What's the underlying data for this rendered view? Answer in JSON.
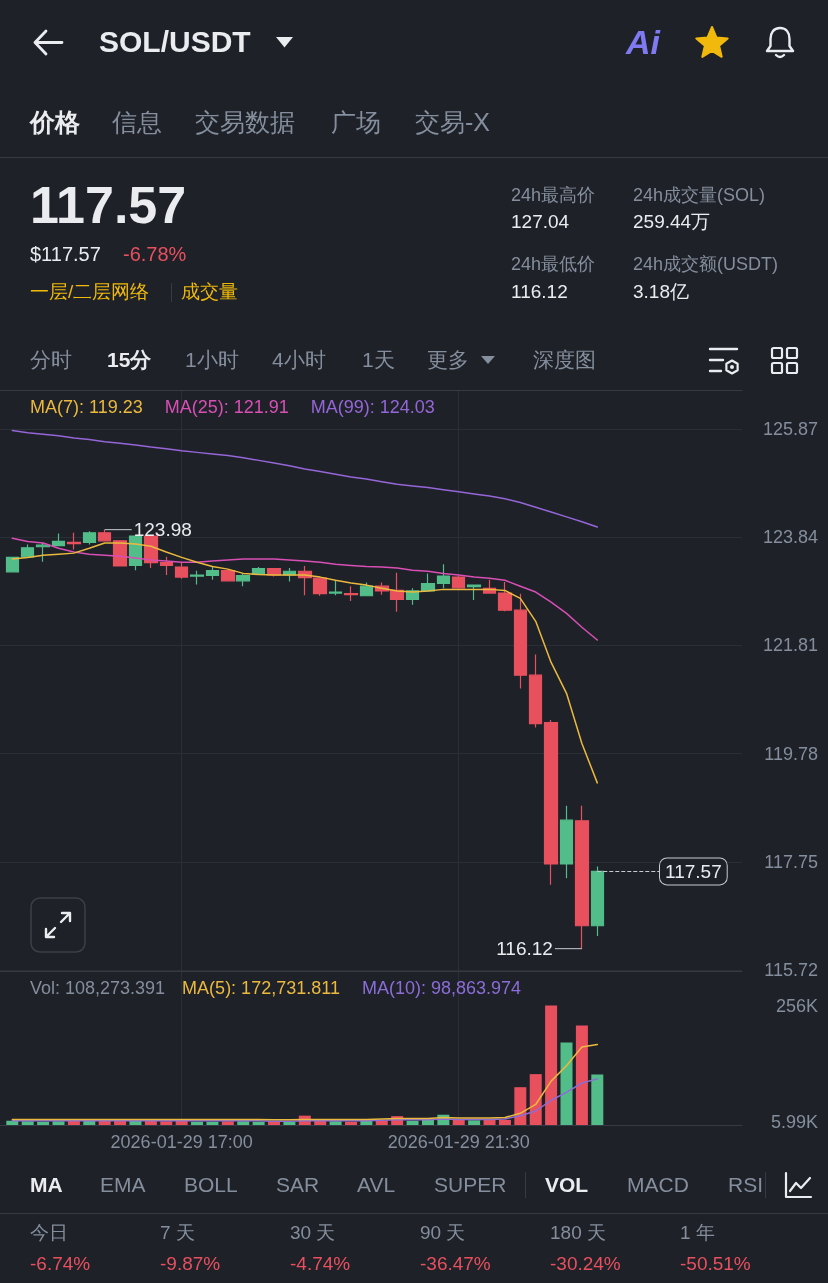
{
  "chart_data": [
    {
      "type": "other",
      "title": "SOL/USDT",
      "annotations": [
        "Ai",
        "价格",
        "信息",
        "交易数据",
        "广场",
        "交易-X",
        "117.57",
        "$117.57",
        "-6.78%",
        "一层/二层网络",
        "成交量",
        "24h最高价",
        "127.04",
        "24h成交量(SOL)",
        "259.44万",
        "24h最低价",
        "116.12",
        "24h成交额(USDT)",
        "3.18亿",
        "分时",
        "15分",
        "1小时",
        "4小时",
        "1天",
        "更多",
        "深度图"
      ]
    },
    {
      "type": "candlestick",
      "x": [
        "2026-01-29T14:15",
        "2026-01-29T14:30",
        "2026-01-29T14:45",
        "2026-01-29T15:00",
        "2026-01-29T15:15",
        "2026-01-29T15:30",
        "2026-01-29T15:45",
        "2026-01-29T16:00",
        "2026-01-29T16:15",
        "2026-01-29T16:30",
        "2026-01-29T16:45",
        "2026-01-29T17:00",
        "2026-01-29T17:15",
        "2026-01-29T17:30",
        "2026-01-29T17:45",
        "2026-01-29T18:00",
        "2026-01-29T18:15",
        "2026-01-29T18:30",
        "2026-01-29T18:45",
        "2026-01-29T19:00",
        "2026-01-29T19:15",
        "2026-01-29T19:30",
        "2026-01-29T19:45",
        "2026-01-29T20:00",
        "2026-01-29T20:15",
        "2026-01-29T20:30",
        "2026-01-29T20:45",
        "2026-01-29T21:00",
        "2026-01-29T21:15",
        "2026-01-29T21:30",
        "2026-01-29T21:45",
        "2026-01-29T22:00",
        "2026-01-29T22:15",
        "2026-01-29T22:30",
        "2026-01-29T22:45",
        "2026-01-29T23:00",
        "2026-01-29T23:15",
        "2026-01-29T23:30",
        "2026-01-29T23:45"
      ],
      "ohlc": [
        [
          123.19,
          123.47,
          123.18,
          123.46
        ],
        [
          123.47,
          123.7,
          123.47,
          123.64
        ],
        [
          123.66,
          123.73,
          123.38,
          123.69
        ],
        [
          123.68,
          123.91,
          123.67,
          123.76
        ],
        [
          123.74,
          123.92,
          123.61,
          123.72
        ],
        [
          123.74,
          123.95,
          123.7,
          123.92
        ],
        [
          123.92,
          123.98,
          123.76,
          123.77
        ],
        [
          123.77,
          123.78,
          123.29,
          123.3
        ],
        [
          123.31,
          123.88,
          123.22,
          123.86
        ],
        [
          123.86,
          123.87,
          123.26,
          123.36
        ],
        [
          123.36,
          123.47,
          123.13,
          123.31
        ],
        [
          123.28,
          123.36,
          123.06,
          123.09
        ],
        [
          123.11,
          123.21,
          122.95,
          123.13
        ],
        [
          123.12,
          123.3,
          123.04,
          123.21
        ],
        [
          123.21,
          123.22,
          123.01,
          123.02
        ],
        [
          123.02,
          123.16,
          122.92,
          123.12
        ],
        [
          123.14,
          123.28,
          123.13,
          123.25
        ],
        [
          123.25,
          123.26,
          123.1,
          123.13
        ],
        [
          123.13,
          123.26,
          123.01,
          123.2
        ],
        [
          123.2,
          123.3,
          122.75,
          123.08
        ],
        [
          123.07,
          123.08,
          122.74,
          122.78
        ],
        [
          122.79,
          123.03,
          122.75,
          122.81
        ],
        [
          122.78,
          122.92,
          122.64,
          122.76
        ],
        [
          122.74,
          122.99,
          122.73,
          122.92
        ],
        [
          122.92,
          122.99,
          122.76,
          122.83
        ],
        [
          122.84,
          123.17,
          122.44,
          122.67
        ],
        [
          122.67,
          122.88,
          122.57,
          122.83
        ],
        [
          122.83,
          123.16,
          122.82,
          122.97
        ],
        [
          122.97,
          123.33,
          122.88,
          123.11
        ],
        [
          123.09,
          123.12,
          122.87,
          122.89
        ],
        [
          122.91,
          122.95,
          122.66,
          122.94
        ],
        [
          122.88,
          123.04,
          122.78,
          122.79
        ],
        [
          122.79,
          123.0,
          122.45,
          122.47
        ],
        [
          122.47,
          122.78,
          121.0,
          121.25
        ],
        [
          121.25,
          121.64,
          120.27,
          120.34
        ],
        [
          120.36,
          120.41,
          117.32,
          117.71
        ],
        [
          117.71,
          118.8,
          117.44,
          118.53
        ],
        [
          118.52,
          118.8,
          116.12,
          116.55
        ],
        [
          116.55,
          117.66,
          116.36,
          117.57
        ]
      ],
      "colors": [
        "#53bd8a",
        "#53bd8a",
        "#53bd8a",
        "#53bd8a",
        "#e8505e",
        "#53bd8a",
        "#e8505e",
        "#e8505e",
        "#53bd8a",
        "#e8505e",
        "#e8505e",
        "#e8505e",
        "#53bd8a",
        "#53bd8a",
        "#e8505e",
        "#53bd8a",
        "#53bd8a",
        "#e8505e",
        "#53bd8a",
        "#e8505e",
        "#e8505e",
        "#53bd8a",
        "#e8505e",
        "#53bd8a",
        "#e8505e",
        "#e8505e",
        "#53bd8a",
        "#53bd8a",
        "#53bd8a",
        "#e8505e",
        "#53bd8a",
        "#e8505e",
        "#e8505e",
        "#e8505e",
        "#e8505e",
        "#e8505e",
        "#53bd8a",
        "#e8505e",
        "#53bd8a"
      ],
      "series": [
        {
          "type": "line",
          "name": "MA(7): 119.23",
          "color": "#ebb93e",
          "values": [
            123.43,
            123.46,
            123.5,
            123.52,
            123.54,
            123.63,
            123.73,
            123.73,
            123.71,
            123.67,
            123.56,
            123.46,
            123.37,
            123.29,
            123.24,
            123.16,
            123.14,
            123.13,
            123.13,
            123.13,
            123.09,
            123.03,
            122.98,
            122.94,
            122.88,
            122.83,
            122.81,
            122.83,
            122.86,
            122.86,
            122.86,
            122.86,
            122.84,
            122.69,
            122.26,
            121.49,
            120.91,
            119.97,
            119.23
          ]
        },
        {
          "type": "line",
          "name": "MA(25): 121.91",
          "color": "#d84fb5",
          "values": [
            123.82,
            123.76,
            123.73,
            123.63,
            123.56,
            123.52,
            123.5,
            123.48,
            123.45,
            123.41,
            123.39,
            123.37,
            123.37,
            123.39,
            123.41,
            123.43,
            123.43,
            123.43,
            123.41,
            123.39,
            123.37,
            123.33,
            123.31,
            123.29,
            123.28,
            123.26,
            123.22,
            123.2,
            123.16,
            123.13,
            123.09,
            123.07,
            123.03,
            122.92,
            122.81,
            122.62,
            122.41,
            122.15,
            121.91
          ]
        },
        {
          "type": "line",
          "name": "MA(99): 124.03",
          "color": "#9566d8",
          "values": [
            125.84,
            125.8,
            125.77,
            125.74,
            125.7,
            125.67,
            125.63,
            125.6,
            125.57,
            125.53,
            125.5,
            125.46,
            125.43,
            125.4,
            125.37,
            125.33,
            125.28,
            125.23,
            125.18,
            125.12,
            125.07,
            125.02,
            124.97,
            124.93,
            124.88,
            124.83,
            124.8,
            124.77,
            124.73,
            124.69,
            124.65,
            124.61,
            124.56,
            124.49,
            124.4,
            124.31,
            124.22,
            124.13,
            124.03
          ]
        }
      ],
      "xlim": [
        "2026-01-29T14:03",
        "2026-01-30T02:06"
      ],
      "xticks": [
        "2026-01-29T17:00",
        "2026-01-29T21:30"
      ],
      "ylim": [
        115.72,
        126.6
      ],
      "yticks": [
        115.72,
        117.75,
        119.78,
        121.81,
        123.84,
        125.87
      ],
      "tick_labels": "y",
      "grid": true,
      "legend": "top left",
      "ref_lines": [
        {
          "axis": "y",
          "value": 117.57,
          "label": "117.57",
          "line_style": "dashed",
          "color": "#c8ccd2"
        }
      ],
      "annotations": [
        {
          "text": "123.98",
          "x": "2026-01-29T15:45",
          "y": 123.98
        },
        {
          "text": "116.12",
          "x": "2026-01-29T23:30",
          "y": 116.12
        }
      ]
    },
    {
      "type": "bar",
      "x": [
        "2026-01-29T14:15",
        "2026-01-29T14:30",
        "2026-01-29T14:45",
        "2026-01-29T15:00",
        "2026-01-29T15:15",
        "2026-01-29T15:30",
        "2026-01-29T15:45",
        "2026-01-29T16:00",
        "2026-01-29T16:15",
        "2026-01-29T16:30",
        "2026-01-29T16:45",
        "2026-01-29T17:00",
        "2026-01-29T17:15",
        "2026-01-29T17:30",
        "2026-01-29T17:45",
        "2026-01-29T18:00",
        "2026-01-29T18:15",
        "2026-01-29T18:30",
        "2026-01-29T18:45",
        "2026-01-29T19:00",
        "2026-01-29T19:15",
        "2026-01-29T19:30",
        "2026-01-29T19:45",
        "2026-01-29T20:00",
        "2026-01-29T20:15",
        "2026-01-29T20:30",
        "2026-01-29T20:45",
        "2026-01-29T21:00",
        "2026-01-29T21:15",
        "2026-01-29T21:30",
        "2026-01-29T21:45",
        "2026-01-29T22:00",
        "2026-01-29T22:15",
        "2026-01-29T22:30",
        "2026-01-29T22:45",
        "2026-01-29T23:00",
        "2026-01-29T23:15",
        "2026-01-29T23:30",
        "2026-01-29T23:45"
      ],
      "series": [
        {
          "values": [
            9000,
            8000,
            7000,
            8000,
            9000,
            9000,
            10000,
            12000,
            11000,
            10000,
            8000,
            9000,
            7000,
            7000,
            8000,
            8000,
            7000,
            8000,
            7000,
            20000,
            12000,
            8000,
            7000,
            9000,
            10000,
            19000,
            9000,
            12000,
            22000,
            12000,
            10000,
            11000,
            11000,
            81000,
            109000,
            256000,
            177000,
            213000,
            108273.391
          ],
          "colors": [
            "#53bd8a",
            "#53bd8a",
            "#53bd8a",
            "#53bd8a",
            "#e8505e",
            "#53bd8a",
            "#e8505e",
            "#e8505e",
            "#53bd8a",
            "#e8505e",
            "#e8505e",
            "#e8505e",
            "#53bd8a",
            "#53bd8a",
            "#e8505e",
            "#53bd8a",
            "#53bd8a",
            "#e8505e",
            "#53bd8a",
            "#e8505e",
            "#e8505e",
            "#53bd8a",
            "#e8505e",
            "#53bd8a",
            "#e8505e",
            "#e8505e",
            "#53bd8a",
            "#53bd8a",
            "#53bd8a",
            "#e8505e",
            "#53bd8a",
            "#e8505e",
            "#e8505e",
            "#e8505e",
            "#e8505e",
            "#e8505e",
            "#53bd8a",
            "#e8505e",
            "#53bd8a"
          ]
        },
        {
          "type": "line",
          "name": "MA(5): 172,731.811",
          "color": "#ebb93e",
          "values": [
            12000,
            12000,
            12000,
            12000,
            12000,
            12000,
            12000,
            12000,
            12000,
            12000,
            12000,
            12000,
            12000,
            12000,
            12000,
            12000,
            12000,
            11000,
            11000,
            12000,
            12000,
            12000,
            12000,
            12000,
            13000,
            14000,
            14000,
            14000,
            16000,
            15000,
            15000,
            15000,
            16000,
            25000,
            44000,
            94000,
            127000,
            167000,
            172731.811
          ]
        },
        {
          "type": "line",
          "name": "MA(10): 98,863.974",
          "color": "#8c6dd8",
          "values": [
            9000,
            9000,
            9000,
            9000,
            9000,
            9000,
            9000,
            9000,
            9000,
            9000,
            9000,
            9000,
            9000,
            9000,
            9000,
            9000,
            9000,
            8000,
            8000,
            9000,
            9000,
            9000,
            9000,
            9000,
            10000,
            11000,
            11000,
            11000,
            13000,
            12000,
            12000,
            12000,
            13000,
            20000,
            30000,
            53000,
            70000,
            90000,
            98863.974
          ]
        }
      ],
      "xlim": [
        "2026-01-29T14:03",
        "2026-01-30T02:06"
      ],
      "xticks": [
        {
          "value": "2026-01-29T17:00",
          "label": "2026-01-29 17:00"
        },
        {
          "value": "2026-01-29T21:30",
          "label": "2026-01-29 21:30"
        }
      ],
      "ylim": [
        0,
        330000
      ],
      "yticks": [
        {
          "value": 5990,
          "label": "5.99K"
        },
        {
          "value": 256000,
          "label": "256K"
        }
      ],
      "grid": "x",
      "legend": "top left",
      "annotations": [
        "Vol: 108,273.391"
      ]
    },
    {
      "type": "other",
      "annotations": [
        "MA",
        "EMA",
        "BOLL",
        "SAR",
        "AVL",
        "SUPER",
        "VOL",
        "MACD",
        "RSI",
        "今日",
        "-6.74%",
        "7 天",
        "-9.87%",
        "30 天",
        "-4.74%",
        "90 天",
        "-36.47%",
        "180 天",
        "-30.24%",
        "1 年",
        "-50.51%"
      ]
    }
  ]
}
